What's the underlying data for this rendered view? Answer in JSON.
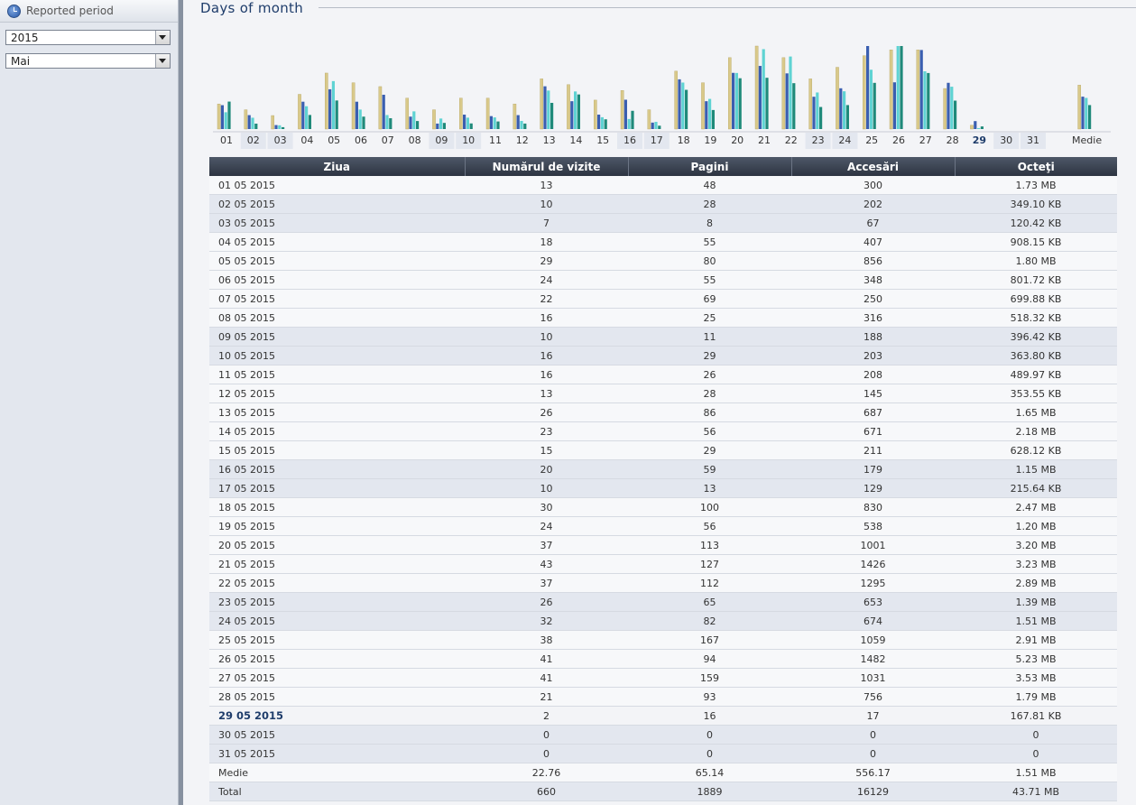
{
  "sidebar": {
    "title": "Reported period",
    "year_value": "2015",
    "month_value": "Mai"
  },
  "section_title": "Days of month",
  "columns": [
    "Ziua",
    "Numărul de vizite",
    "Pagini",
    "Accesări",
    "Octeţi"
  ],
  "chart_data": {
    "type": "bar",
    "categories": [
      "01",
      "02",
      "03",
      "04",
      "05",
      "06",
      "07",
      "08",
      "09",
      "10",
      "11",
      "12",
      "13",
      "14",
      "15",
      "16",
      "17",
      "18",
      "19",
      "20",
      "21",
      "22",
      "23",
      "24",
      "25",
      "26",
      "27",
      "28",
      "29",
      "30",
      "31",
      "Medie"
    ],
    "weekend_days": [
      "02",
      "03",
      "09",
      "10",
      "16",
      "17",
      "23",
      "24",
      "30",
      "31"
    ],
    "today": "29",
    "colors": [
      "#d9c98a",
      "#3a5eb0",
      "#5fd3d3",
      "#1f8a7a"
    ],
    "series": [
      {
        "values": [
          13,
          10,
          7,
          18,
          29,
          24,
          22,
          16,
          10,
          16,
          16,
          13,
          26,
          23,
          15,
          20,
          10,
          30,
          24,
          37,
          43,
          37,
          26,
          32,
          38,
          41,
          41,
          21,
          2,
          0,
          0,
          22.76
        ]
      },
      {
        "values": [
          48,
          28,
          8,
          55,
          80,
          55,
          69,
          25,
          11,
          29,
          26,
          28,
          86,
          56,
          29,
          59,
          13,
          100,
          56,
          113,
          127,
          112,
          65,
          82,
          167,
          94,
          159,
          93,
          16,
          0,
          0,
          65.14
        ]
      },
      {
        "values": [
          300,
          202,
          67,
          407,
          856,
          348,
          250,
          316,
          188,
          203,
          208,
          145,
          687,
          671,
          211,
          179,
          129,
          830,
          538,
          1001,
          1426,
          1295,
          653,
          674,
          1059,
          1482,
          1031,
          756,
          17,
          0,
          0,
          556.17
        ]
      },
      {
        "values": [
          1.73,
          0.341,
          0.118,
          0.887,
          1.8,
          0.783,
          0.683,
          0.506,
          0.387,
          0.355,
          0.478,
          0.345,
          1.65,
          2.18,
          0.613,
          1.15,
          0.211,
          2.47,
          1.2,
          3.2,
          3.23,
          2.89,
          1.39,
          1.51,
          2.91,
          5.23,
          3.53,
          1.79,
          0.164,
          0,
          0,
          1.51
        ]
      }
    ]
  },
  "rows": [
    {
      "day": "01 05 2015",
      "visits": "13",
      "pages": "48",
      "hits": "300",
      "bytes": "1.73 MB",
      "type": "odd"
    },
    {
      "day": "02 05 2015",
      "visits": "10",
      "pages": "28",
      "hits": "202",
      "bytes": "349.10 KB",
      "type": "weekend"
    },
    {
      "day": "03 05 2015",
      "visits": "7",
      "pages": "8",
      "hits": "67",
      "bytes": "120.42 KB",
      "type": "weekend"
    },
    {
      "day": "04 05 2015",
      "visits": "18",
      "pages": "55",
      "hits": "407",
      "bytes": "908.15 KB",
      "type": "odd"
    },
    {
      "day": "05 05 2015",
      "visits": "29",
      "pages": "80",
      "hits": "856",
      "bytes": "1.80 MB",
      "type": "odd"
    },
    {
      "day": "06 05 2015",
      "visits": "24",
      "pages": "55",
      "hits": "348",
      "bytes": "801.72 KB",
      "type": "odd"
    },
    {
      "day": "07 05 2015",
      "visits": "22",
      "pages": "69",
      "hits": "250",
      "bytes": "699.88 KB",
      "type": "odd"
    },
    {
      "day": "08 05 2015",
      "visits": "16",
      "pages": "25",
      "hits": "316",
      "bytes": "518.32 KB",
      "type": "odd"
    },
    {
      "day": "09 05 2015",
      "visits": "10",
      "pages": "11",
      "hits": "188",
      "bytes": "396.42 KB",
      "type": "weekend"
    },
    {
      "day": "10 05 2015",
      "visits": "16",
      "pages": "29",
      "hits": "203",
      "bytes": "363.80 KB",
      "type": "weekend"
    },
    {
      "day": "11 05 2015",
      "visits": "16",
      "pages": "26",
      "hits": "208",
      "bytes": "489.97 KB",
      "type": "odd"
    },
    {
      "day": "12 05 2015",
      "visits": "13",
      "pages": "28",
      "hits": "145",
      "bytes": "353.55 KB",
      "type": "odd"
    },
    {
      "day": "13 05 2015",
      "visits": "26",
      "pages": "86",
      "hits": "687",
      "bytes": "1.65 MB",
      "type": "odd"
    },
    {
      "day": "14 05 2015",
      "visits": "23",
      "pages": "56",
      "hits": "671",
      "bytes": "2.18 MB",
      "type": "odd"
    },
    {
      "day": "15 05 2015",
      "visits": "15",
      "pages": "29",
      "hits": "211",
      "bytes": "628.12 KB",
      "type": "odd"
    },
    {
      "day": "16 05 2015",
      "visits": "20",
      "pages": "59",
      "hits": "179",
      "bytes": "1.15 MB",
      "type": "weekend"
    },
    {
      "day": "17 05 2015",
      "visits": "10",
      "pages": "13",
      "hits": "129",
      "bytes": "215.64 KB",
      "type": "weekend"
    },
    {
      "day": "18 05 2015",
      "visits": "30",
      "pages": "100",
      "hits": "830",
      "bytes": "2.47 MB",
      "type": "odd"
    },
    {
      "day": "19 05 2015",
      "visits": "24",
      "pages": "56",
      "hits": "538",
      "bytes": "1.20 MB",
      "type": "odd"
    },
    {
      "day": "20 05 2015",
      "visits": "37",
      "pages": "113",
      "hits": "1001",
      "bytes": "3.20 MB",
      "type": "odd"
    },
    {
      "day": "21 05 2015",
      "visits": "43",
      "pages": "127",
      "hits": "1426",
      "bytes": "3.23 MB",
      "type": "odd"
    },
    {
      "day": "22 05 2015",
      "visits": "37",
      "pages": "112",
      "hits": "1295",
      "bytes": "2.89 MB",
      "type": "odd"
    },
    {
      "day": "23 05 2015",
      "visits": "26",
      "pages": "65",
      "hits": "653",
      "bytes": "1.39 MB",
      "type": "weekend"
    },
    {
      "day": "24 05 2015",
      "visits": "32",
      "pages": "82",
      "hits": "674",
      "bytes": "1.51 MB",
      "type": "weekend"
    },
    {
      "day": "25 05 2015",
      "visits": "38",
      "pages": "167",
      "hits": "1059",
      "bytes": "2.91 MB",
      "type": "odd"
    },
    {
      "day": "26 05 2015",
      "visits": "41",
      "pages": "94",
      "hits": "1482",
      "bytes": "5.23 MB",
      "type": "odd"
    },
    {
      "day": "27 05 2015",
      "visits": "41",
      "pages": "159",
      "hits": "1031",
      "bytes": "3.53 MB",
      "type": "odd"
    },
    {
      "day": "28 05 2015",
      "visits": "21",
      "pages": "93",
      "hits": "756",
      "bytes": "1.79 MB",
      "type": "odd"
    },
    {
      "day": "29 05 2015",
      "visits": "2",
      "pages": "16",
      "hits": "17",
      "bytes": "167.81 KB",
      "type": "today"
    },
    {
      "day": "30 05 2015",
      "visits": "0",
      "pages": "0",
      "hits": "0",
      "bytes": "0",
      "type": "weekend"
    },
    {
      "day": "31 05 2015",
      "visits": "0",
      "pages": "0",
      "hits": "0",
      "bytes": "0",
      "type": "weekend"
    },
    {
      "day": "Medie",
      "visits": "22.76",
      "pages": "65.14",
      "hits": "556.17",
      "bytes": "1.51 MB",
      "type": "odd"
    },
    {
      "day": "Total",
      "visits": "660",
      "pages": "1889",
      "hits": "16129",
      "bytes": "43.71 MB",
      "type": "weekend"
    }
  ]
}
